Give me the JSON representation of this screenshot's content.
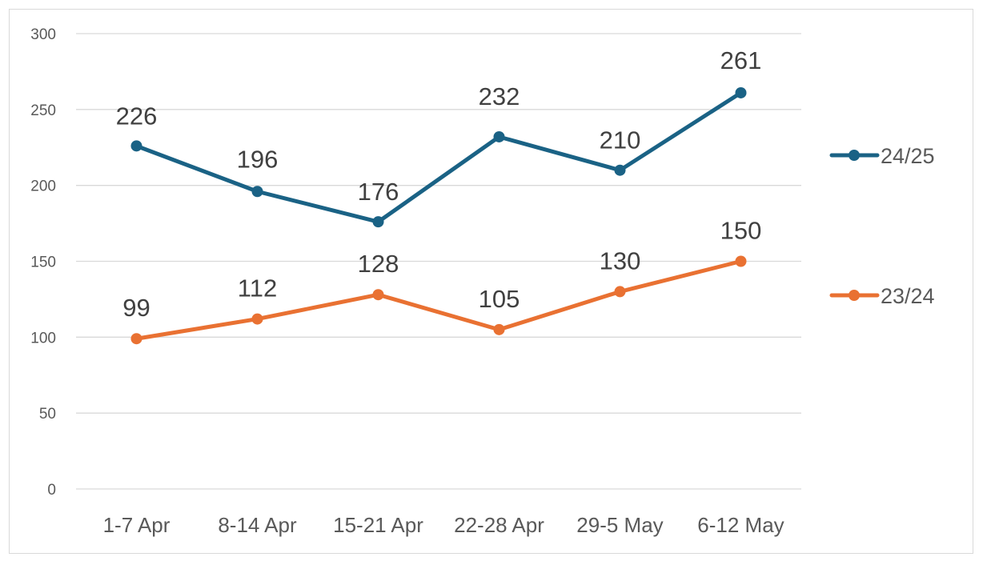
{
  "chart_data": {
    "type": "line",
    "title": "",
    "xlabel": "",
    "ylabel": "",
    "categories": [
      "1-7 Apr",
      "8-14 Apr",
      "15-21 Apr",
      "22-28 Apr",
      "29-5 May",
      "6-12 May"
    ],
    "series": [
      {
        "name": "24/25",
        "color": "#1A6285",
        "values": [
          226,
          196,
          176,
          232,
          210,
          261
        ]
      },
      {
        "name": "23/24",
        "color": "#E97132",
        "values": [
          99,
          112,
          128,
          105,
          130,
          150
        ]
      }
    ],
    "ylim": [
      0,
      300
    ],
    "yticks": [
      0,
      50,
      100,
      150,
      200,
      250,
      300
    ],
    "grid": true,
    "legend_position": "right",
    "data_labels": true
  }
}
